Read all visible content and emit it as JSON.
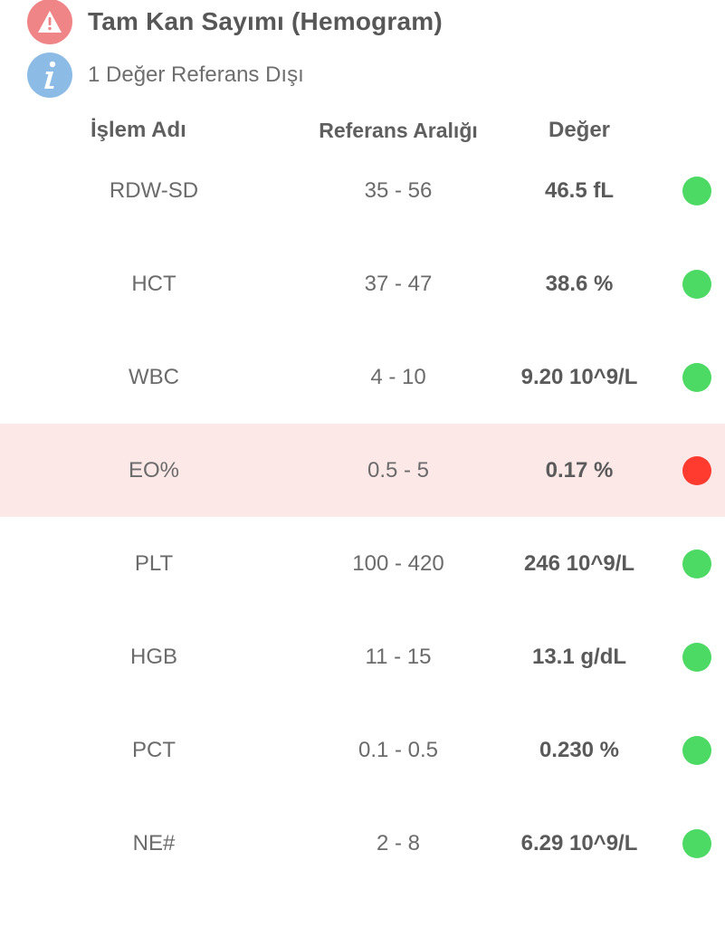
{
  "section": {
    "title": "Tam Kan Sayımı (Hemogram)",
    "info": "1 Değer Referans Dışı",
    "warn_icon": "warning-icon",
    "info_icon": "info-icon",
    "colors": {
      "warn_circle": "#f08587",
      "info_circle": "#8cbce6",
      "ok": "#4cd964",
      "alert": "#ff3b30",
      "out_of_range_row": "#fde8e8"
    }
  },
  "table": {
    "headers": {
      "name": "İşlem Adı",
      "reference": "Referans Aralığı",
      "value": "Değer"
    },
    "rows": [
      {
        "name": "RDW-SD",
        "reference": "35 - 56",
        "value": "46.5 fL",
        "status": "ok"
      },
      {
        "name": "HCT",
        "reference": "37 - 47",
        "value": "38.6 %",
        "status": "ok"
      },
      {
        "name": "WBC",
        "reference": "4 - 10",
        "value": "9.20 10^9/L",
        "status": "ok"
      },
      {
        "name": "EO%",
        "reference": "0.5 - 5",
        "value": "0.17 %",
        "status": "alert"
      },
      {
        "name": "PLT",
        "reference": "100 - 420",
        "value": "246 10^9/L",
        "status": "ok"
      },
      {
        "name": "HGB",
        "reference": "11 - 15",
        "value": "13.1 g/dL",
        "status": "ok"
      },
      {
        "name": "PCT",
        "reference": "0.1 - 0.5",
        "value": "0.230 %",
        "status": "ok"
      },
      {
        "name": "NE#",
        "reference": "2 - 8",
        "value": "6.29 10^9/L",
        "status": "ok"
      }
    ]
  }
}
